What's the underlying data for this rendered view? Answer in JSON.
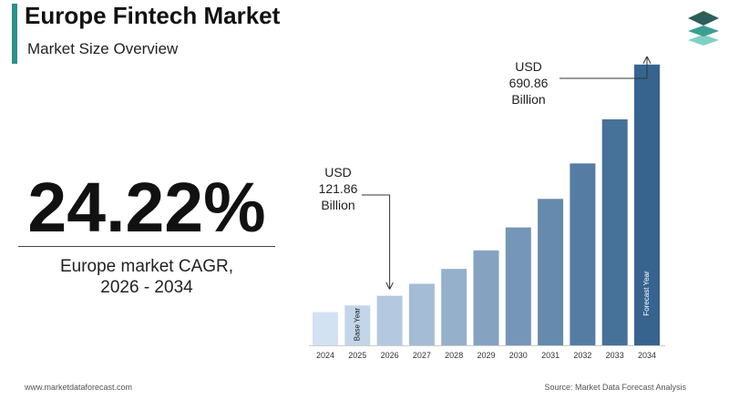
{
  "header": {
    "title": "Europe Fintech Market",
    "subtitle": "Market Size Overview"
  },
  "cagr": {
    "value": "24.22%",
    "label_line1": "Europe market CAGR,",
    "label_line2": "2026 - 2034"
  },
  "footer": {
    "website": "www.marketdataforecast.com",
    "source": "Source: Market Data Forecast Analysis"
  },
  "colors": {
    "accent": "#2f8f8a",
    "bar_light": "#d3e2f3",
    "bar_dark": "#36648f"
  },
  "chart_data": {
    "type": "bar",
    "categories": [
      "2024",
      "2025",
      "2026",
      "2027",
      "2028",
      "2029",
      "2030",
      "2031",
      "2032",
      "2033",
      "2034"
    ],
    "values": [
      81.7,
      98.1,
      121.86,
      151.4,
      188.0,
      233.6,
      290.1,
      360.3,
      447.6,
      556.0,
      690.86
    ],
    "bar_tags": {
      "2025": "Base Year",
      "2034": "Forecast Year"
    },
    "annotations": [
      {
        "category": "2026",
        "lines": [
          "USD",
          "121.86",
          "Billion"
        ]
      },
      {
        "category": "2034",
        "lines": [
          "USD",
          "690.86",
          "Billion"
        ]
      }
    ],
    "ylim": [
      0,
      760
    ]
  }
}
